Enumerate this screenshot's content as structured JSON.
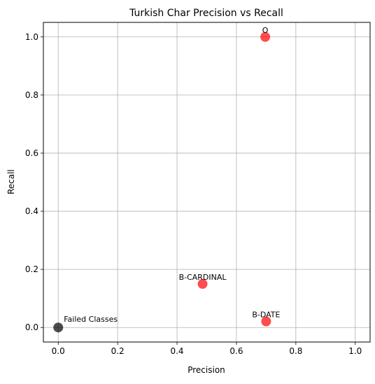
{
  "chart_data": {
    "type": "scatter",
    "title": "Turkish Char Precision vs Recall",
    "xlabel": "Precision",
    "ylabel": "Recall",
    "xlim": [
      -0.05,
      1.05
    ],
    "ylim": [
      -0.05,
      1.05
    ],
    "xticks": [
      "0.0",
      "0.2",
      "0.4",
      "0.6",
      "0.8",
      "1.0"
    ],
    "yticks": [
      "0.0",
      "0.2",
      "0.4",
      "0.6",
      "0.8",
      "1.0"
    ],
    "grid": true,
    "points": [
      {
        "label": "O",
        "x": 0.697,
        "y": 1.0,
        "color": "#ff0000"
      },
      {
        "label": "B-CARDINAL",
        "x": 0.486,
        "y": 0.15,
        "color": "#ff0000"
      },
      {
        "label": "B-DATE",
        "x": 0.7,
        "y": 0.021,
        "color": "#ff0000"
      },
      {
        "label": "Failed Classes",
        "x": 0.0,
        "y": 0.0,
        "color": "#000000"
      }
    ]
  }
}
